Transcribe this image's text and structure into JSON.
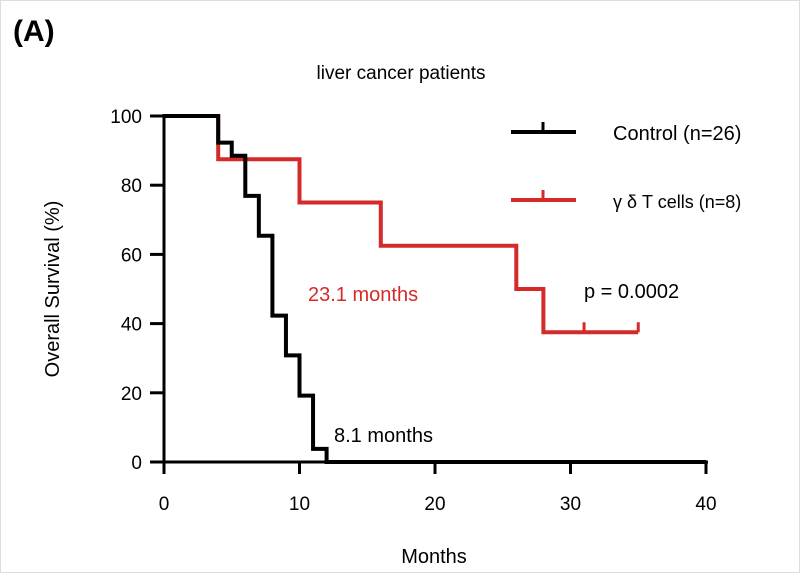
{
  "panel_label": "(A)",
  "chart_data": {
    "type": "line",
    "subtype": "kaplan-meier",
    "title": "liver cancer patients",
    "xlabel": "Months",
    "ylabel": "Overall Survival (%)",
    "xlim": [
      0,
      40
    ],
    "ylim": [
      0,
      100
    ],
    "xticks": [
      "0",
      "10",
      "20",
      "30",
      "40"
    ],
    "yticks": [
      "0",
      "20",
      "40",
      "60",
      "80",
      "100"
    ],
    "legend_placement": "top-right",
    "series": [
      {
        "name": "Control (n=26)",
        "color": "#000000",
        "steps": [
          [
            0,
            100
          ],
          [
            4,
            92.3
          ],
          [
            5,
            88.5
          ],
          [
            6,
            76.9
          ],
          [
            7,
            65.4
          ],
          [
            8,
            42.3
          ],
          [
            9,
            30.8
          ],
          [
            10,
            19.2
          ],
          [
            11,
            3.8
          ],
          [
            12,
            0
          ],
          [
            40,
            0
          ]
        ],
        "censored": []
      },
      {
        "name": "γ δ T cells (n=8)",
        "color": "#d42a2a",
        "steps": [
          [
            0,
            100
          ],
          [
            4,
            87.5
          ],
          [
            10,
            75
          ],
          [
            16,
            62.5
          ],
          [
            26,
            50
          ],
          [
            28,
            37.5
          ],
          [
            35,
            37.5
          ]
        ],
        "censored": [
          [
            31,
            37.5
          ],
          [
            35,
            37.5
          ]
        ]
      }
    ],
    "annotations": [
      {
        "text": "23.1 months",
        "color": "#d42a2a"
      },
      {
        "text": "8.1 months",
        "color": "#000000"
      },
      {
        "text": "p = 0.0002",
        "color": "#000000"
      }
    ]
  }
}
